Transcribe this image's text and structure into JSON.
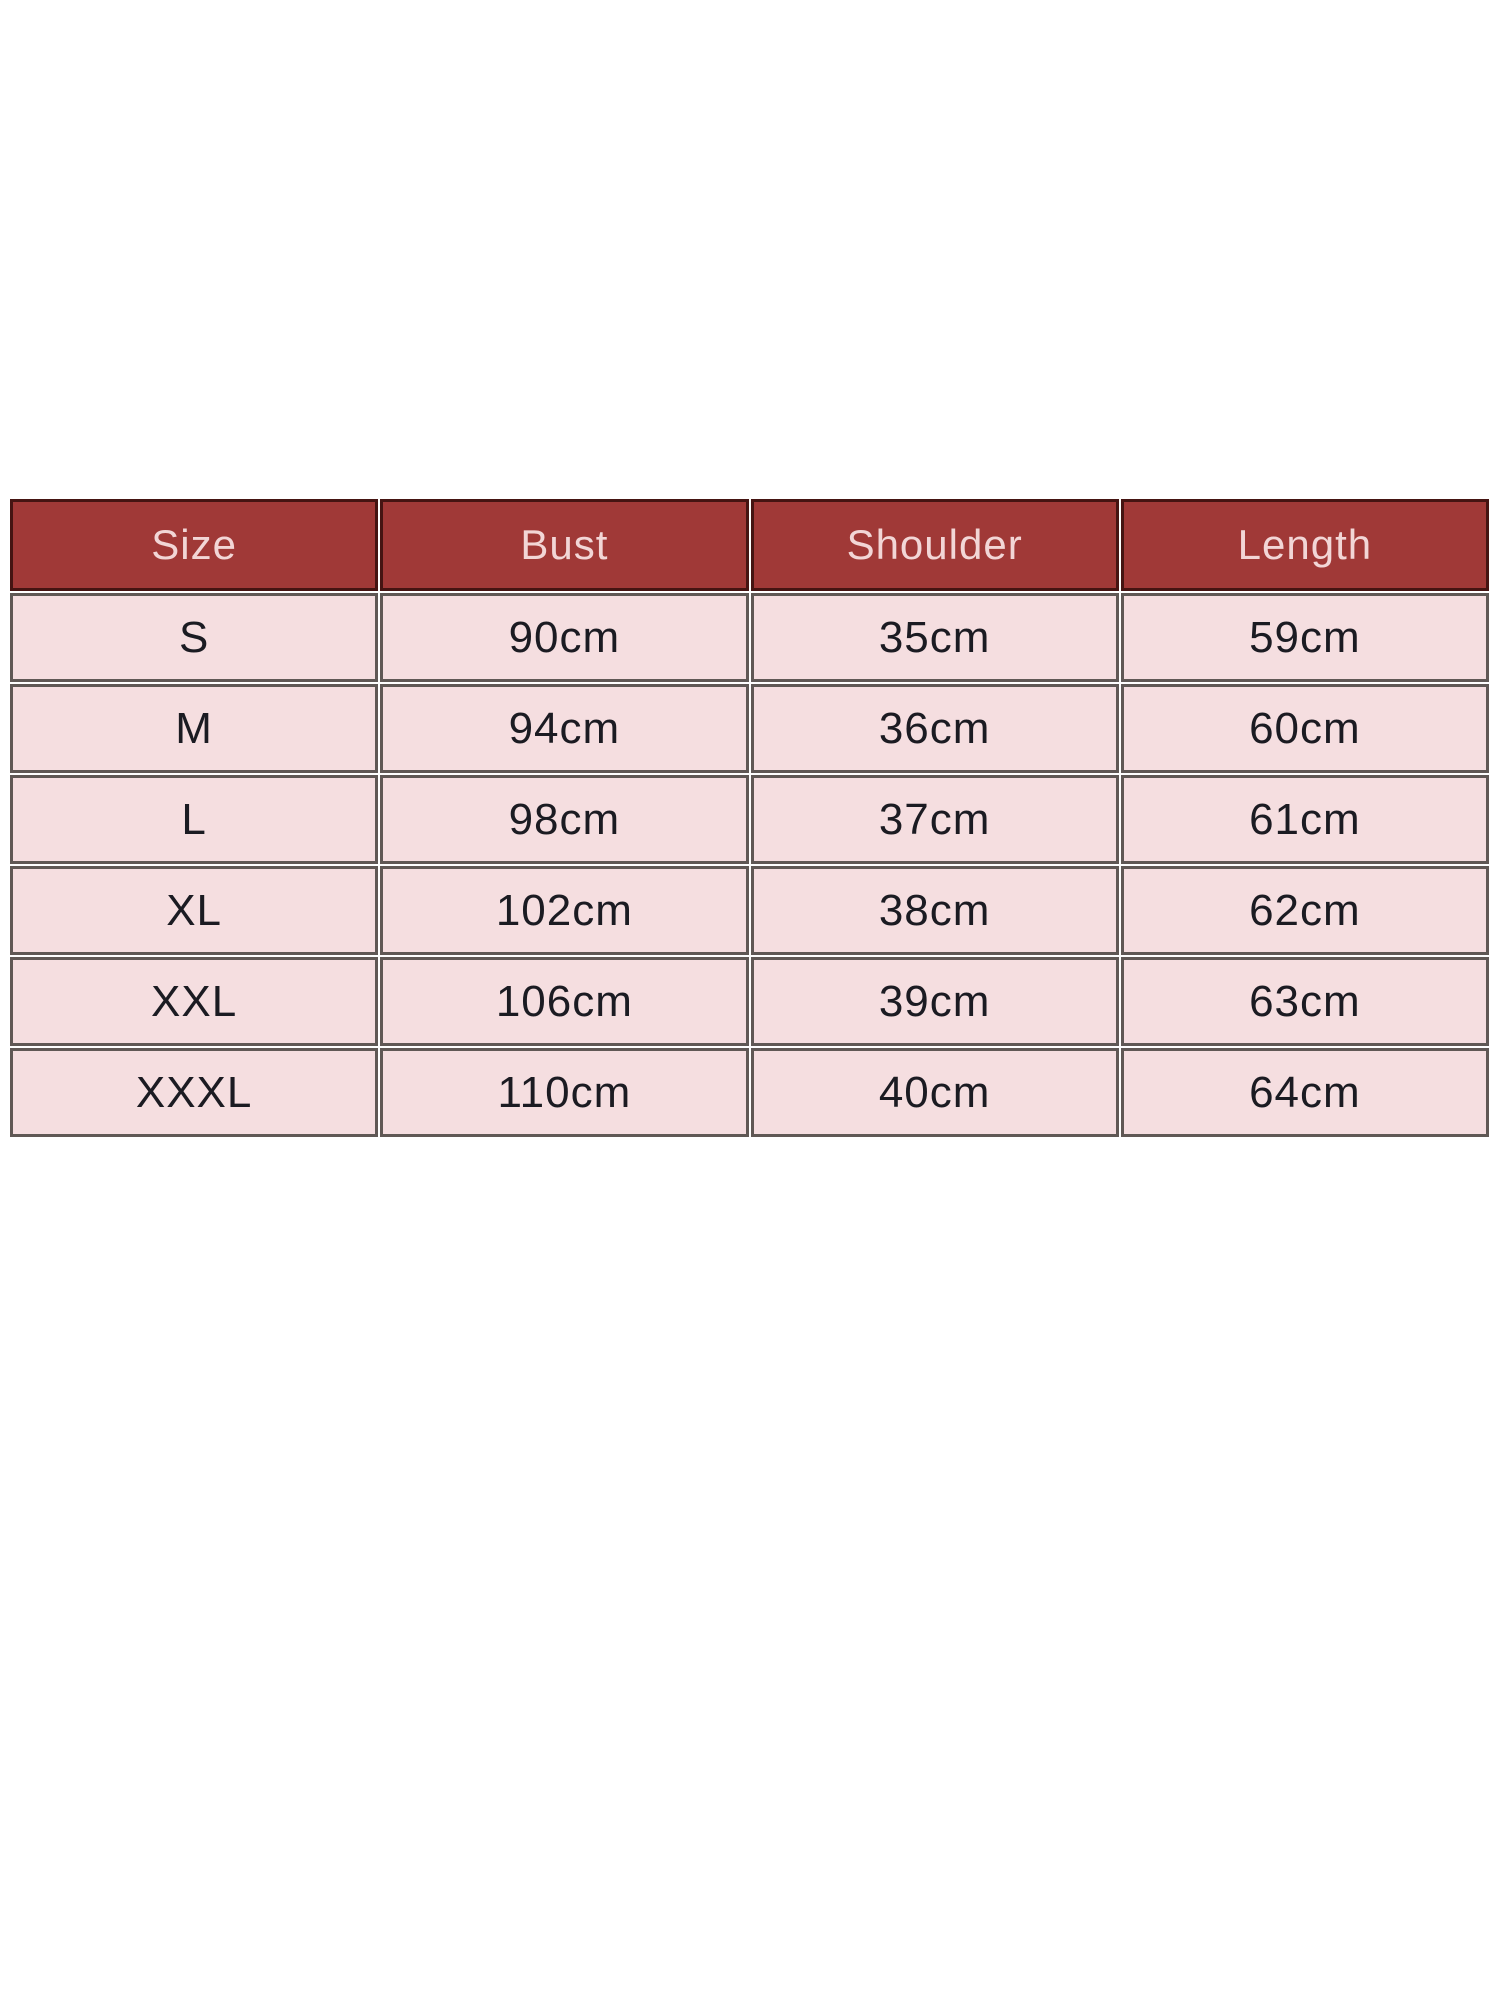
{
  "chart_data": {
    "type": "table",
    "title": "",
    "columns": [
      "Size",
      "Bust",
      "Shoulder",
      "Length"
    ],
    "rows": [
      [
        "S",
        "90cm",
        "35cm",
        "59cm"
      ],
      [
        "M",
        "94cm",
        "36cm",
        "60cm"
      ],
      [
        "L",
        "98cm",
        "37cm",
        "61cm"
      ],
      [
        "XL",
        "102cm",
        "38cm",
        "62cm"
      ],
      [
        "XXL",
        "106cm",
        "39cm",
        "63cm"
      ],
      [
        "XXXL",
        "110cm",
        "40cm",
        "64cm"
      ]
    ]
  },
  "colors": {
    "page_bg": "#ffffff",
    "header_bg": "#a03937",
    "header_text": "#f2d6d6",
    "header_border": "#451412",
    "row_bg": "#f5dee0",
    "row_text": "#1b1b22",
    "cell_border": "#605855"
  }
}
